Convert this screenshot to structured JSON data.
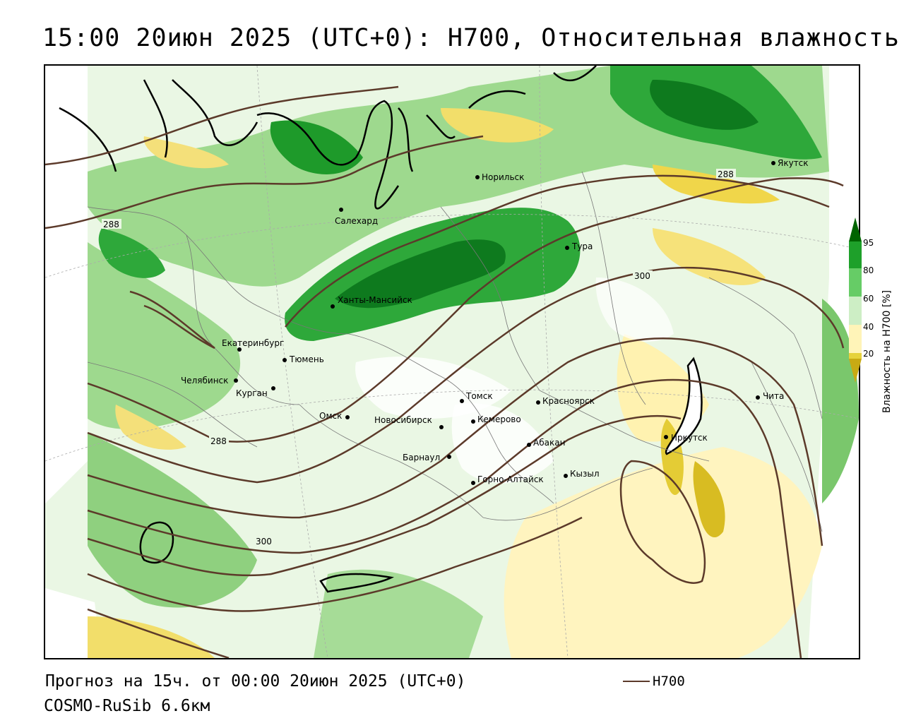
{
  "header": {
    "title": "15:00 20июн 2025 (UTC+0): H700, Относительная влажность"
  },
  "footer": {
    "forecast": "Прогноз на 15ч. от 00:00 20июн 2025 (UTC+0)",
    "model": "COSMO-RuSib 6.6км"
  },
  "legend": {
    "line_label": "H700",
    "line_color": "#5c3a2a"
  },
  "colorbar": {
    "title": "Влажность на H700 [%]",
    "ticks": [
      "95",
      "80",
      "60",
      "40",
      "20"
    ],
    "colors": [
      "#006400",
      "#1ea02a",
      "#66cc66",
      "#cdeec5",
      "#ffffff",
      "#fff4b8",
      "#e6d23c",
      "#c8aa14"
    ]
  },
  "contour_labels": [
    "288",
    "288",
    "288",
    "300",
    "300"
  ],
  "cities": [
    {
      "name": "Норильск"
    },
    {
      "name": "Якутск"
    },
    {
      "name": "Салехард"
    },
    {
      "name": "Тура"
    },
    {
      "name": "Ханты-Мансийск"
    },
    {
      "name": "Екатеринбург"
    },
    {
      "name": "Тюмень"
    },
    {
      "name": "Челябинск"
    },
    {
      "name": "Курган"
    },
    {
      "name": "Омск"
    },
    {
      "name": "Новосибирск"
    },
    {
      "name": "Томск"
    },
    {
      "name": "Кемерово"
    },
    {
      "name": "Красноярск"
    },
    {
      "name": "Абакан"
    },
    {
      "name": "Барнаул"
    },
    {
      "name": "Горно-Алтайск"
    },
    {
      "name": "Кызыл"
    },
    {
      "name": "Иркутск"
    },
    {
      "name": "Чита"
    }
  ]
}
